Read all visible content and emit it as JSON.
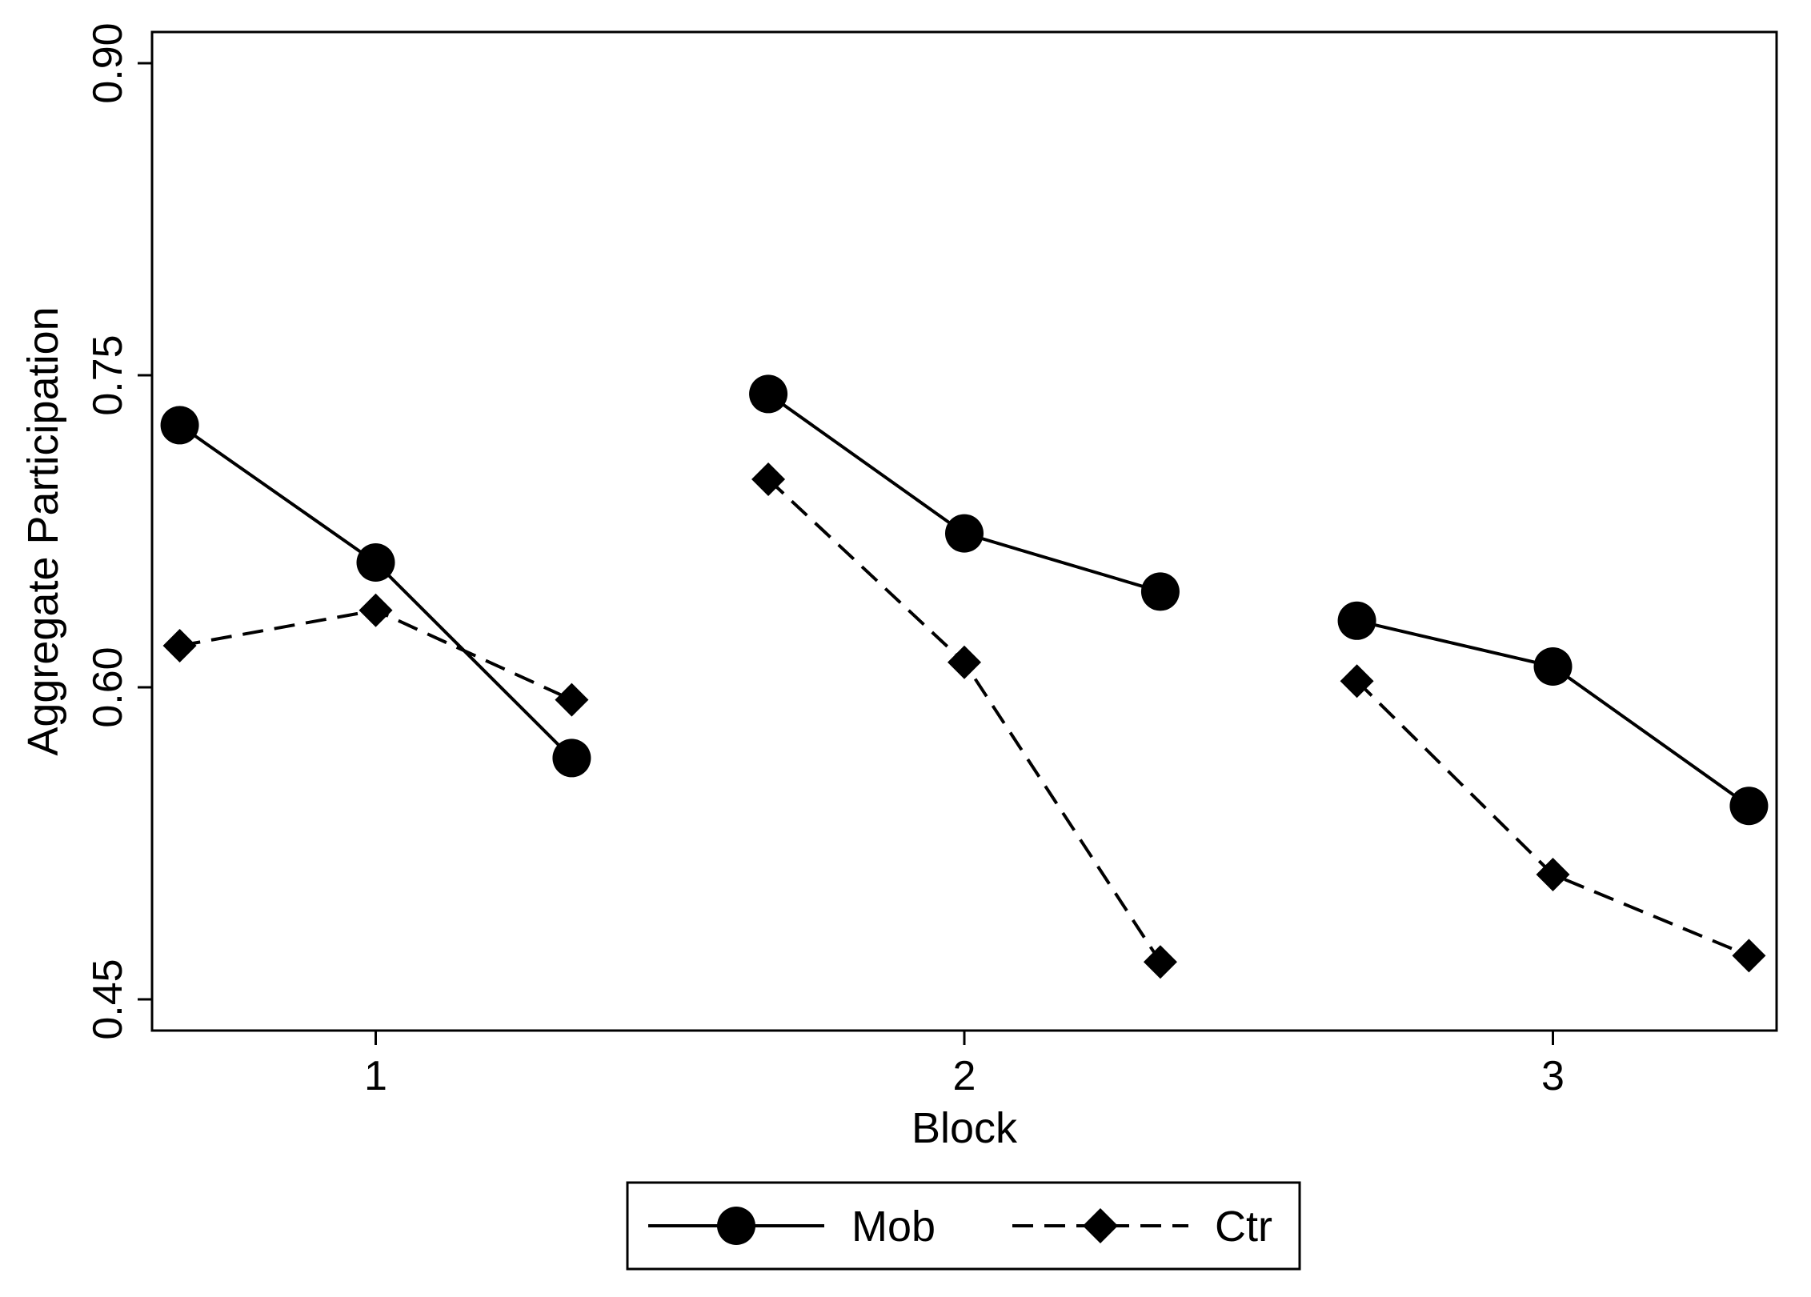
{
  "chart_data": {
    "type": "line",
    "title": "",
    "xlabel": "Block",
    "ylabel": "Aggregate Participation",
    "xlim": [
      0.62,
      3.38
    ],
    "ylim": [
      0.435,
      0.915
    ],
    "xticks": [
      1,
      2,
      3
    ],
    "xtick_labels": [
      "1",
      "2",
      "3"
    ],
    "yticks": [
      0.45,
      0.6,
      0.75,
      0.9
    ],
    "ytick_labels": [
      "0.45",
      "0.60",
      "0.75",
      "0.90"
    ],
    "grid": false,
    "legend_position": "bottom-center",
    "colors": {
      "line": "#000000",
      "background": "#ffffff"
    },
    "series": [
      {
        "name": "Mob",
        "line_style": "solid",
        "marker": "circle",
        "segments": [
          {
            "x": [
              0.667,
              1.0,
              1.333
            ],
            "y": [
              0.726,
              0.66,
              0.566
            ]
          },
          {
            "x": [
              1.667,
              2.0,
              2.333
            ],
            "y": [
              0.741,
              0.674,
              0.646
            ]
          },
          {
            "x": [
              2.667,
              3.0,
              3.333
            ],
            "y": [
              0.632,
              0.61,
              0.543
            ]
          }
        ]
      },
      {
        "name": "Ctr",
        "line_style": "dashed",
        "marker": "diamond",
        "segments": [
          {
            "x": [
              0.667,
              1.0,
              1.333
            ],
            "y": [
              0.62,
              0.637,
              0.594
            ]
          },
          {
            "x": [
              1.667,
              2.0,
              2.333
            ],
            "y": [
              0.7,
              0.612,
              0.468
            ]
          },
          {
            "x": [
              2.667,
              3.0,
              3.333
            ],
            "y": [
              0.603,
              0.51,
              0.471
            ]
          }
        ]
      }
    ]
  }
}
